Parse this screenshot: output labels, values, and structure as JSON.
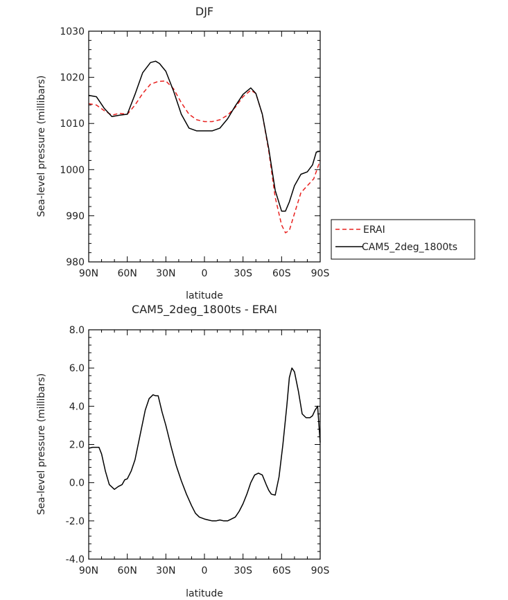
{
  "chart_data": [
    {
      "type": "line",
      "title": "DJF",
      "xlabel": "latitude",
      "ylabel": "Sea-level pressure (millibars)",
      "xlim": [
        -90,
        90
      ],
      "ylim": [
        980,
        1030
      ],
      "x_ticks": [
        -90,
        -60,
        -30,
        0,
        30,
        60,
        90
      ],
      "x_tick_labels": [
        "90N",
        "60N",
        "30N",
        "0",
        "30S",
        "60S",
        "90S"
      ],
      "y_ticks": [
        980,
        990,
        1000,
        1010,
        1020,
        1030
      ],
      "y_tick_labels": [
        "980",
        "990",
        "1000",
        "1010",
        "1020",
        "1030"
      ],
      "grid": false,
      "legend": {
        "placement": "right",
        "entries": [
          "ERAI",
          "CAM5_2deg_1800ts"
        ]
      },
      "series": [
        {
          "name": "ERAI",
          "color": "#e8201e",
          "dash": "dashed",
          "x": [
            -90,
            -84,
            -78,
            -72,
            -66,
            -60,
            -54,
            -48,
            -42,
            -36,
            -30,
            -24,
            -18,
            -12,
            -6,
            0,
            6,
            12,
            18,
            24,
            30,
            36,
            40,
            45,
            50,
            55,
            60,
            63,
            66,
            70,
            75,
            80,
            85,
            90
          ],
          "y": [
            1014.3,
            1014.0,
            1012.8,
            1011.8,
            1012.2,
            1012.0,
            1014.0,
            1016.5,
            1018.5,
            1019.1,
            1019.2,
            1017.5,
            1014.5,
            1012.0,
            1010.8,
            1010.4,
            1010.4,
            1010.8,
            1011.8,
            1013.5,
            1015.8,
            1017.2,
            1016.5,
            1012.0,
            1004.0,
            994.0,
            988.0,
            986.3,
            986.8,
            990.5,
            995.0,
            996.5,
            998.0,
            1002.0
          ]
        },
        {
          "name": "CAM5_2deg_1800ts",
          "color": "#000000",
          "dash": "solid",
          "x": [
            -90,
            -84,
            -78,
            -72,
            -66,
            -60,
            -54,
            -48,
            -42,
            -38,
            -35,
            -30,
            -24,
            -18,
            -12,
            -6,
            0,
            6,
            12,
            18,
            24,
            30,
            36,
            40,
            45,
            50,
            55,
            60,
            63,
            66,
            70,
            75,
            80,
            84,
            87,
            90
          ],
          "y": [
            1016.1,
            1015.8,
            1013.3,
            1011.5,
            1011.8,
            1012.0,
            1016.3,
            1021.0,
            1023.2,
            1023.5,
            1023.0,
            1021.3,
            1017.0,
            1012.0,
            1009.0,
            1008.4,
            1008.4,
            1008.4,
            1009.0,
            1011.0,
            1013.8,
            1016.3,
            1017.7,
            1016.5,
            1012.0,
            1004.5,
            995.5,
            991.0,
            991.0,
            993.0,
            996.5,
            999.0,
            999.5,
            1001.0,
            1003.8,
            1004.0
          ]
        }
      ]
    },
    {
      "type": "line",
      "title": "CAM5_2deg_1800ts - ERAI",
      "xlabel": "latitude",
      "ylabel": "Sea-level pressure (millibars)",
      "xlim": [
        -90,
        90
      ],
      "ylim": [
        -4,
        8
      ],
      "x_ticks": [
        -90,
        -60,
        -30,
        0,
        30,
        60,
        90
      ],
      "x_tick_labels": [
        "90N",
        "60N",
        "30N",
        "0",
        "30S",
        "60S",
        "90S"
      ],
      "y_ticks": [
        -4,
        -2,
        0,
        2,
        4,
        6,
        8
      ],
      "y_tick_labels": [
        "-4.0",
        "-2.0",
        "0.0",
        "2.0",
        "4.0",
        "6.0",
        "8.0"
      ],
      "grid": false,
      "series": [
        {
          "color": "#000000",
          "dash": "solid",
          "x": [
            -90,
            -87,
            -84,
            -82,
            -80,
            -77,
            -74,
            -70,
            -67,
            -64,
            -62,
            -60,
            -57,
            -54,
            -50,
            -46,
            -43,
            -40,
            -38,
            -36,
            -33,
            -30,
            -26,
            -22,
            -18,
            -14,
            -10,
            -7,
            -4,
            0,
            3,
            6,
            9,
            12,
            15,
            18,
            21,
            24,
            27,
            30,
            33,
            36,
            39,
            42,
            45,
            48,
            50,
            52,
            55,
            58,
            61,
            64,
            66,
            68,
            70,
            73,
            76,
            79,
            82,
            84,
            86,
            88,
            90
          ],
          "y": [
            1.8,
            1.85,
            1.85,
            1.85,
            1.5,
            0.6,
            -0.1,
            -0.35,
            -0.2,
            -0.1,
            0.15,
            0.2,
            0.6,
            1.2,
            2.5,
            3.8,
            4.4,
            4.6,
            4.55,
            4.55,
            3.7,
            3.0,
            1.9,
            0.9,
            0.1,
            -0.6,
            -1.2,
            -1.6,
            -1.8,
            -1.9,
            -1.95,
            -2.0,
            -2.0,
            -1.95,
            -2.0,
            -2.0,
            -1.9,
            -1.8,
            -1.5,
            -1.1,
            -0.6,
            0.0,
            0.4,
            0.5,
            0.4,
            -0.1,
            -0.4,
            -0.6,
            -0.65,
            0.3,
            2.0,
            4.0,
            5.5,
            6.0,
            5.8,
            4.8,
            3.6,
            3.4,
            3.4,
            3.5,
            3.8,
            4.0,
            2.1
          ]
        }
      ]
    }
  ]
}
